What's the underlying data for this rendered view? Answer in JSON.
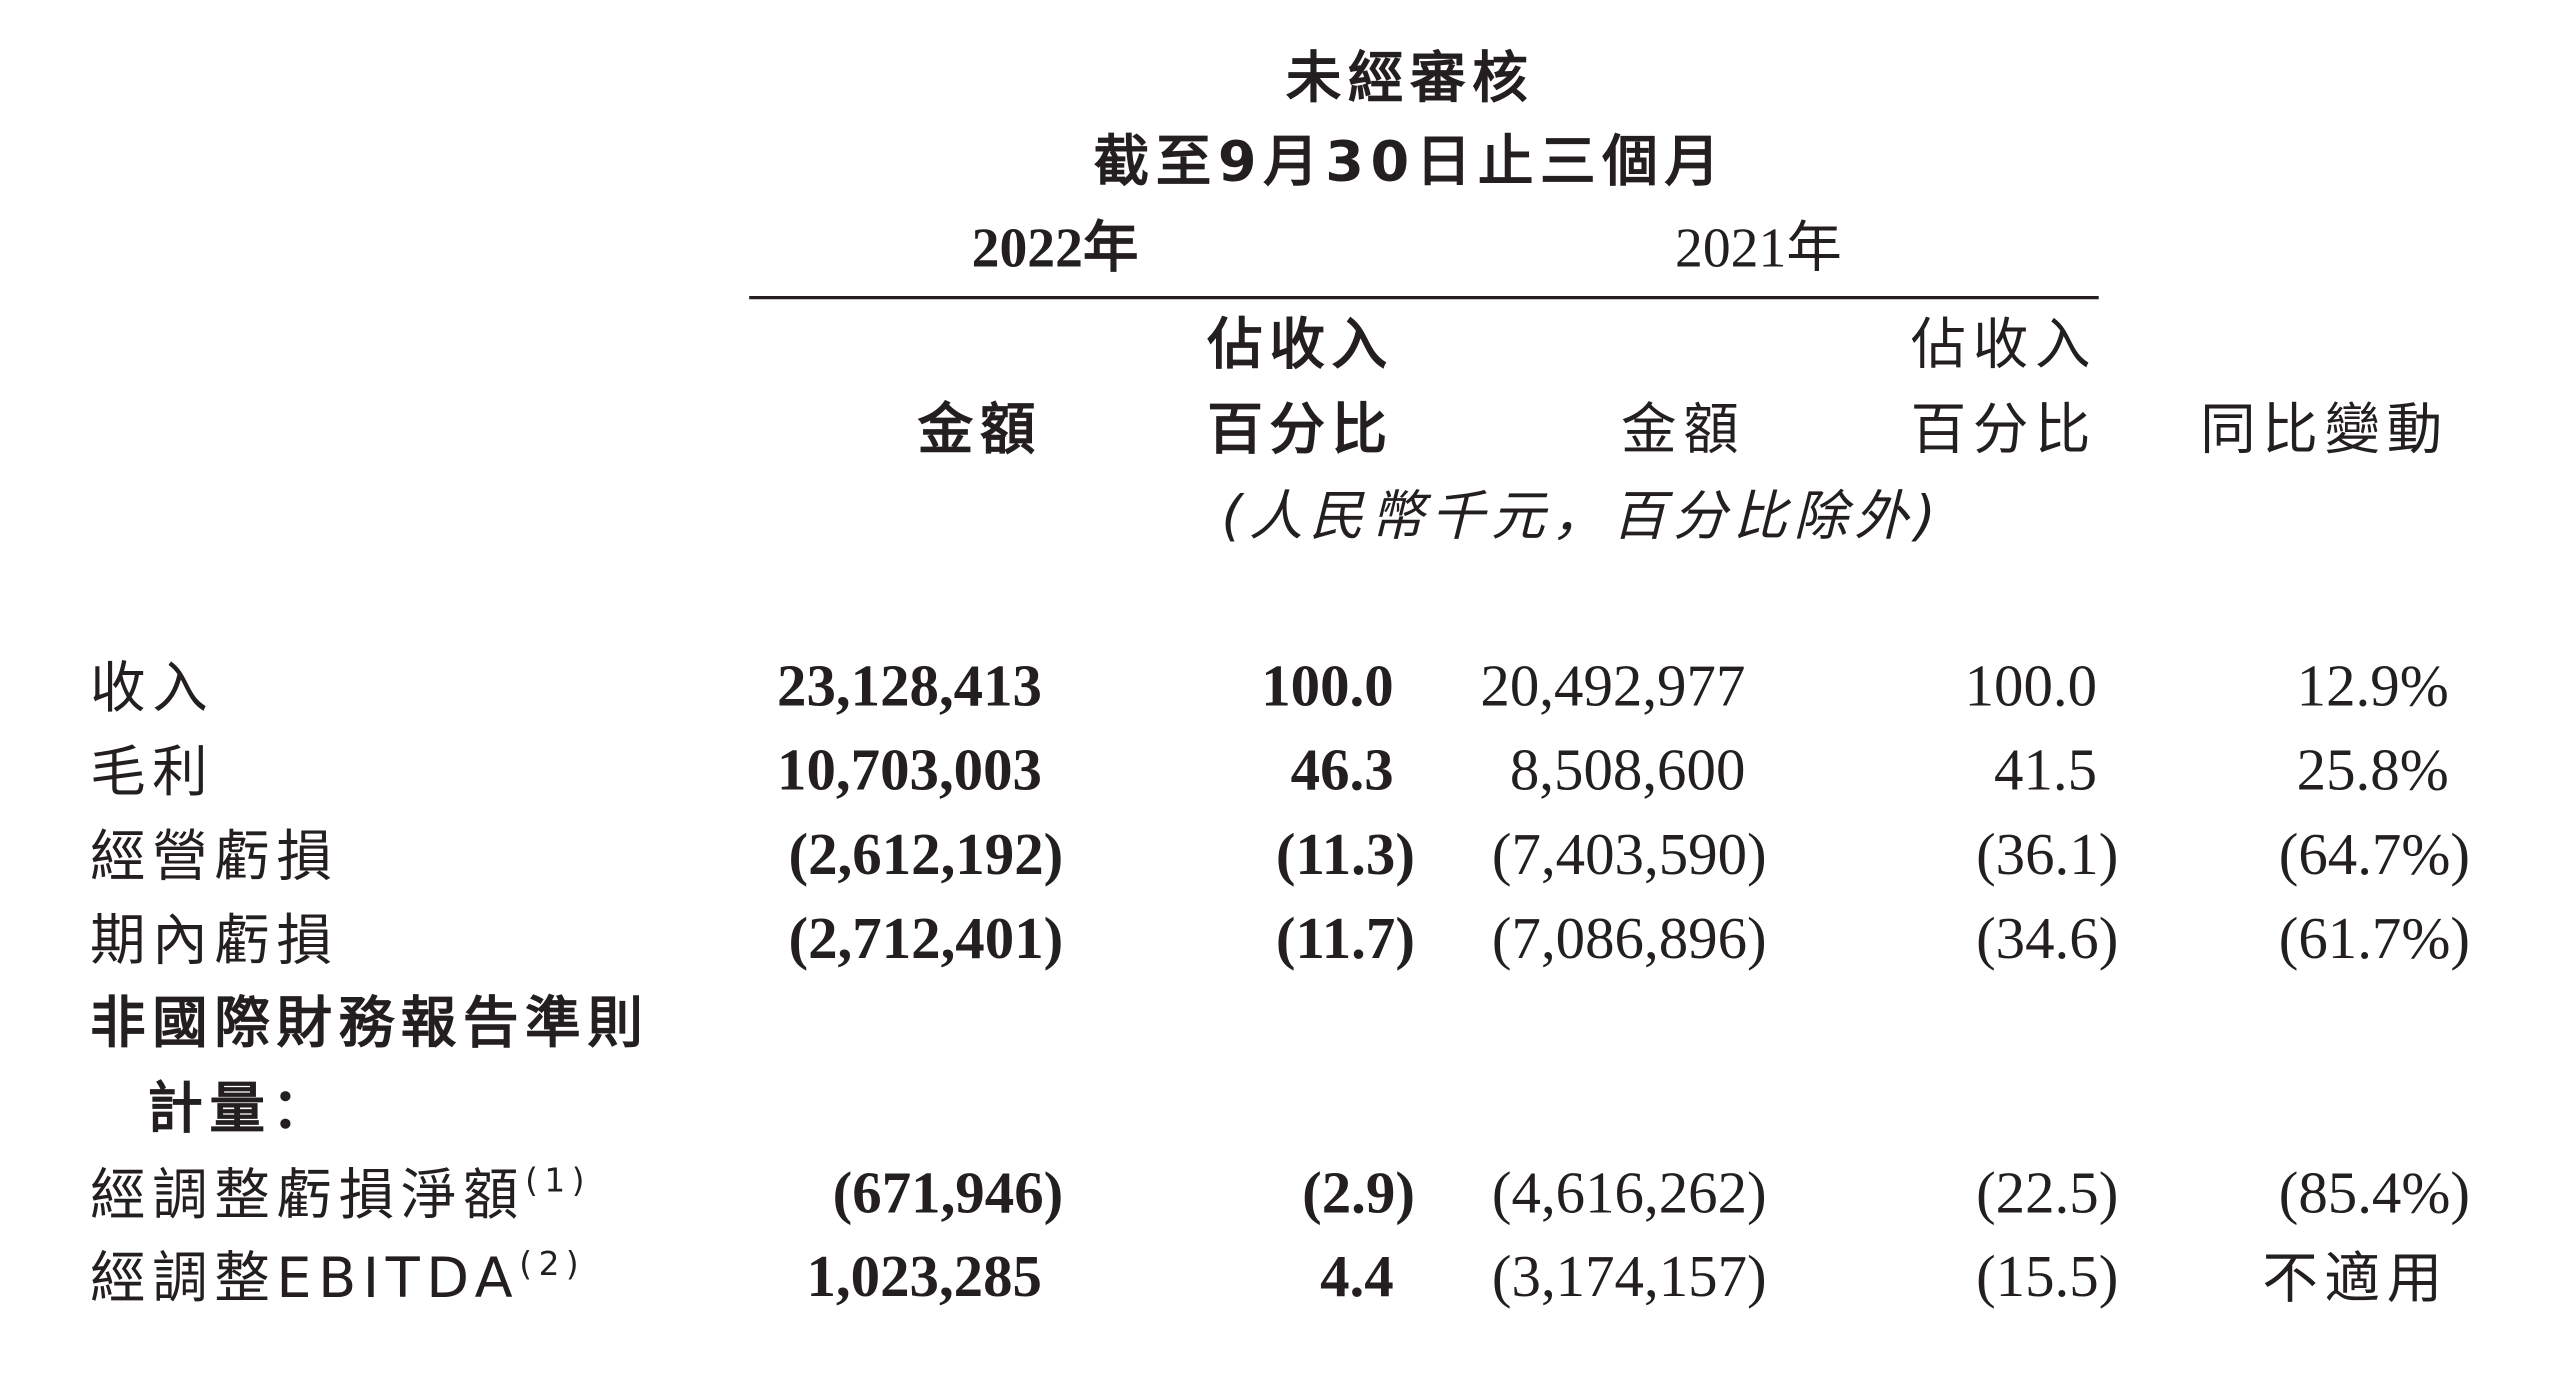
{
  "header": {
    "title": "未經審核",
    "period": "截至9月30日止三個月",
    "years": [
      "2022年",
      "2021年"
    ]
  },
  "column_headers": [
    {
      "lines": [
        "金額"
      ]
    },
    {
      "lines": [
        "佔收入",
        "百分比"
      ]
    },
    {
      "lines": [
        "金額"
      ]
    },
    {
      "lines": [
        "佔收入",
        "百分比"
      ]
    },
    {
      "lines": [
        "同比變動"
      ]
    }
  ],
  "units": "(人民幣千元，百分比除外)",
  "rows": [
    {
      "label": "收入",
      "values": [
        "23,128,413",
        "100.0",
        "20,492,977",
        "100.0",
        "12.9%"
      ]
    },
    {
      "label": "毛利",
      "values": [
        "10,703,003",
        "46.3",
        "8,508,600",
        "41.5",
        "25.8%"
      ]
    },
    {
      "label": "經營虧損",
      "values": [
        "(2,612,192)",
        "(11.3)",
        "(7,403,590)",
        "(36.1)",
        "(64.7%)"
      ]
    },
    {
      "label": "期內虧損",
      "values": [
        "(2,712,401)",
        "(11.7)",
        "(7,086,896)",
        "(34.6)",
        "(61.7%)"
      ]
    }
  ],
  "section": {
    "lines": [
      "非國際財務報告準則",
      "計量："
    ]
  },
  "adjusted_rows": [
    {
      "label": "經調整虧損淨額",
      "note": "(1)",
      "values": [
        "(671,946)",
        "(2.9)",
        "(4,616,262)",
        "(22.5)",
        "(85.4%)"
      ]
    },
    {
      "label": "經調整EBITDA",
      "note": "(2)",
      "values": [
        "1,023,285",
        "4.4",
        "(3,174,157)",
        "(15.5)",
        "不適用"
      ]
    }
  ]
}
